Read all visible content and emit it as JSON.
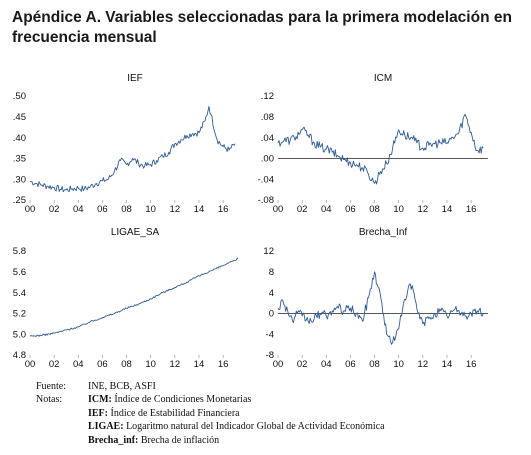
{
  "header": {
    "title": "Apéndice A. Variables seleccionadas para la primera modelación en frecuencia mensual"
  },
  "colors": {
    "line": "#2f5b9a",
    "zero_line": "#222222",
    "axis": "#888888"
  },
  "chart_data": [
    {
      "type": "line",
      "title": "IEF",
      "x_ticks": [
        "00",
        "02",
        "04",
        "06",
        "08",
        "10",
        "12",
        "14",
        "16"
      ],
      "y_ticks": [
        ".25",
        ".30",
        ".35",
        ".40",
        ".45",
        ".50"
      ],
      "ylim": [
        0.25,
        0.5
      ],
      "series": [
        {
          "values": [
            [
              2000.0,
              0.295
            ],
            [
              2000.5,
              0.29
            ],
            [
              2001.0,
              0.286
            ],
            [
              2001.5,
              0.283
            ],
            [
              2002.0,
              0.28
            ],
            [
              2002.5,
              0.276
            ],
            [
              2003.0,
              0.274
            ],
            [
              2003.5,
              0.277
            ],
            [
              2004.0,
              0.279
            ],
            [
              2004.5,
              0.276
            ],
            [
              2005.0,
              0.282
            ],
            [
              2005.5,
              0.29
            ],
            [
              2006.0,
              0.296
            ],
            [
              2006.5,
              0.3
            ],
            [
              2007.0,
              0.32
            ],
            [
              2007.5,
              0.345
            ],
            [
              2008.0,
              0.335
            ],
            [
              2008.5,
              0.35
            ],
            [
              2009.0,
              0.338
            ],
            [
              2009.5,
              0.332
            ],
            [
              2010.0,
              0.335
            ],
            [
              2010.5,
              0.345
            ],
            [
              2011.0,
              0.355
            ],
            [
              2011.5,
              0.365
            ],
            [
              2012.0,
              0.385
            ],
            [
              2012.5,
              0.395
            ],
            [
              2013.0,
              0.405
            ],
            [
              2013.5,
              0.41
            ],
            [
              2014.0,
              0.412
            ],
            [
              2014.5,
              0.44
            ],
            [
              2014.83,
              0.475
            ],
            [
              2015.0,
              0.455
            ],
            [
              2015.5,
              0.395
            ],
            [
              2016.0,
              0.378
            ],
            [
              2016.5,
              0.37
            ],
            [
              2017.0,
              0.385
            ]
          ]
        }
      ]
    },
    {
      "type": "line",
      "title": "ICM",
      "x_ticks": [
        "00",
        "02",
        "04",
        "06",
        "08",
        "10",
        "12",
        "14",
        "16"
      ],
      "y_ticks": [
        "-.08",
        "-.04",
        ".00",
        ".04",
        ".08",
        ".12"
      ],
      "ylim": [
        -0.08,
        0.12
      ],
      "zero_line": 0,
      "series": [
        {
          "values": [
            [
              2000.0,
              0.03
            ],
            [
              2000.5,
              0.034
            ],
            [
              2001.0,
              0.035
            ],
            [
              2001.5,
              0.042
            ],
            [
              2002.0,
              0.055
            ],
            [
              2002.5,
              0.045
            ],
            [
              2003.0,
              0.03
            ],
            [
              2003.5,
              0.022
            ],
            [
              2004.0,
              0.018
            ],
            [
              2004.5,
              0.012
            ],
            [
              2005.0,
              0.004
            ],
            [
              2005.5,
              -0.002
            ],
            [
              2006.0,
              -0.008
            ],
            [
              2006.5,
              -0.012
            ],
            [
              2007.0,
              -0.018
            ],
            [
              2007.5,
              -0.03
            ],
            [
              2008.0,
              -0.048
            ],
            [
              2008.5,
              -0.025
            ],
            [
              2009.0,
              -0.01
            ],
            [
              2009.5,
              0.02
            ],
            [
              2010.0,
              0.055
            ],
            [
              2010.5,
              0.045
            ],
            [
              2011.0,
              0.04
            ],
            [
              2011.5,
              0.03
            ],
            [
              2012.0,
              0.02
            ],
            [
              2012.5,
              0.025
            ],
            [
              2013.0,
              0.028
            ],
            [
              2013.5,
              0.03
            ],
            [
              2014.0,
              0.03
            ],
            [
              2014.5,
              0.04
            ],
            [
              2015.0,
              0.05
            ],
            [
              2015.5,
              0.085
            ],
            [
              2016.0,
              0.05
            ],
            [
              2016.5,
              0.015
            ],
            [
              2017.0,
              0.02
            ]
          ]
        }
      ]
    },
    {
      "type": "line",
      "title": "LIGAE_SA",
      "x_ticks": [
        "00",
        "02",
        "04",
        "06",
        "08",
        "10",
        "12",
        "14",
        "16"
      ],
      "y_ticks": [
        "4.8",
        "5.0",
        "5.2",
        "5.4",
        "5.6",
        "5.8"
      ],
      "ylim": [
        4.8,
        5.8
      ],
      "series": [
        {
          "values": [
            [
              2000.0,
              4.98
            ],
            [
              2001.0,
              4.99
            ],
            [
              2002.0,
              5.01
            ],
            [
              2003.0,
              5.04
            ],
            [
              2004.0,
              5.07
            ],
            [
              2005.0,
              5.12
            ],
            [
              2006.0,
              5.16
            ],
            [
              2007.0,
              5.2
            ],
            [
              2008.0,
              5.25
            ],
            [
              2009.0,
              5.29
            ],
            [
              2010.0,
              5.34
            ],
            [
              2011.0,
              5.4
            ],
            [
              2012.0,
              5.45
            ],
            [
              2013.0,
              5.5
            ],
            [
              2014.0,
              5.56
            ],
            [
              2015.0,
              5.61
            ],
            [
              2016.0,
              5.66
            ],
            [
              2017.0,
              5.71
            ],
            [
              2017.25,
              5.73
            ]
          ]
        }
      ]
    },
    {
      "type": "line",
      "title": "Brecha_Inf",
      "x_ticks": [
        "00",
        "02",
        "04",
        "06",
        "08",
        "10",
        "12",
        "14",
        "16"
      ],
      "y_ticks": [
        "-8",
        "-4",
        "0",
        "4",
        "8",
        "12"
      ],
      "ylim": [
        -8,
        12
      ],
      "zero_line": 0,
      "series": [
        {
          "values": [
            [
              2000.0,
              1.0
            ],
            [
              2000.4,
              2.5
            ],
            [
              2000.8,
              0.5
            ],
            [
              2001.2,
              -1.5
            ],
            [
              2001.6,
              0.0
            ],
            [
              2002.0,
              -0.5
            ],
            [
              2002.5,
              -1.5
            ],
            [
              2003.0,
              -1.0
            ],
            [
              2003.5,
              0.0
            ],
            [
              2004.0,
              -0.5
            ],
            [
              2004.5,
              0.5
            ],
            [
              2005.0,
              1.0
            ],
            [
              2005.5,
              0.5
            ],
            [
              2006.0,
              1.0
            ],
            [
              2006.5,
              0.0
            ],
            [
              2007.0,
              -1.5
            ],
            [
              2007.5,
              3.0
            ],
            [
              2008.0,
              8.0
            ],
            [
              2008.3,
              5.0
            ],
            [
              2008.6,
              2.0
            ],
            [
              2009.0,
              -4.0
            ],
            [
              2009.5,
              -5.5
            ],
            [
              2010.0,
              -3.0
            ],
            [
              2010.4,
              2.0
            ],
            [
              2010.8,
              5.0
            ],
            [
              2011.2,
              4.5
            ],
            [
              2011.6,
              0.0
            ],
            [
              2012.0,
              -2.0
            ],
            [
              2012.5,
              -1.0
            ],
            [
              2013.0,
              0.0
            ],
            [
              2013.5,
              0.5
            ],
            [
              2014.0,
              -0.5
            ],
            [
              2014.5,
              0.5
            ],
            [
              2015.0,
              0.5
            ],
            [
              2015.5,
              -0.5
            ],
            [
              2016.0,
              0.0
            ],
            [
              2016.5,
              0.5
            ],
            [
              2017.0,
              0.0
            ]
          ]
        }
      ]
    }
  ],
  "notes": {
    "fuente_head": "Fuente:",
    "fuente_text": "INE, BCB, ASFI",
    "notas_head": "Notas:",
    "items": [
      {
        "key": "ICM:",
        "text": " Índice de Condiciones Monetarias"
      },
      {
        "key": "IEF:",
        "text": " Índice de Estabilidad Financiera"
      },
      {
        "key": "LIGAE:",
        "text": " Logaritmo natural del Indicador Global de Actividad Económica"
      },
      {
        "key": "Brecha_inf:",
        "text": " Brecha de inflación"
      }
    ]
  }
}
